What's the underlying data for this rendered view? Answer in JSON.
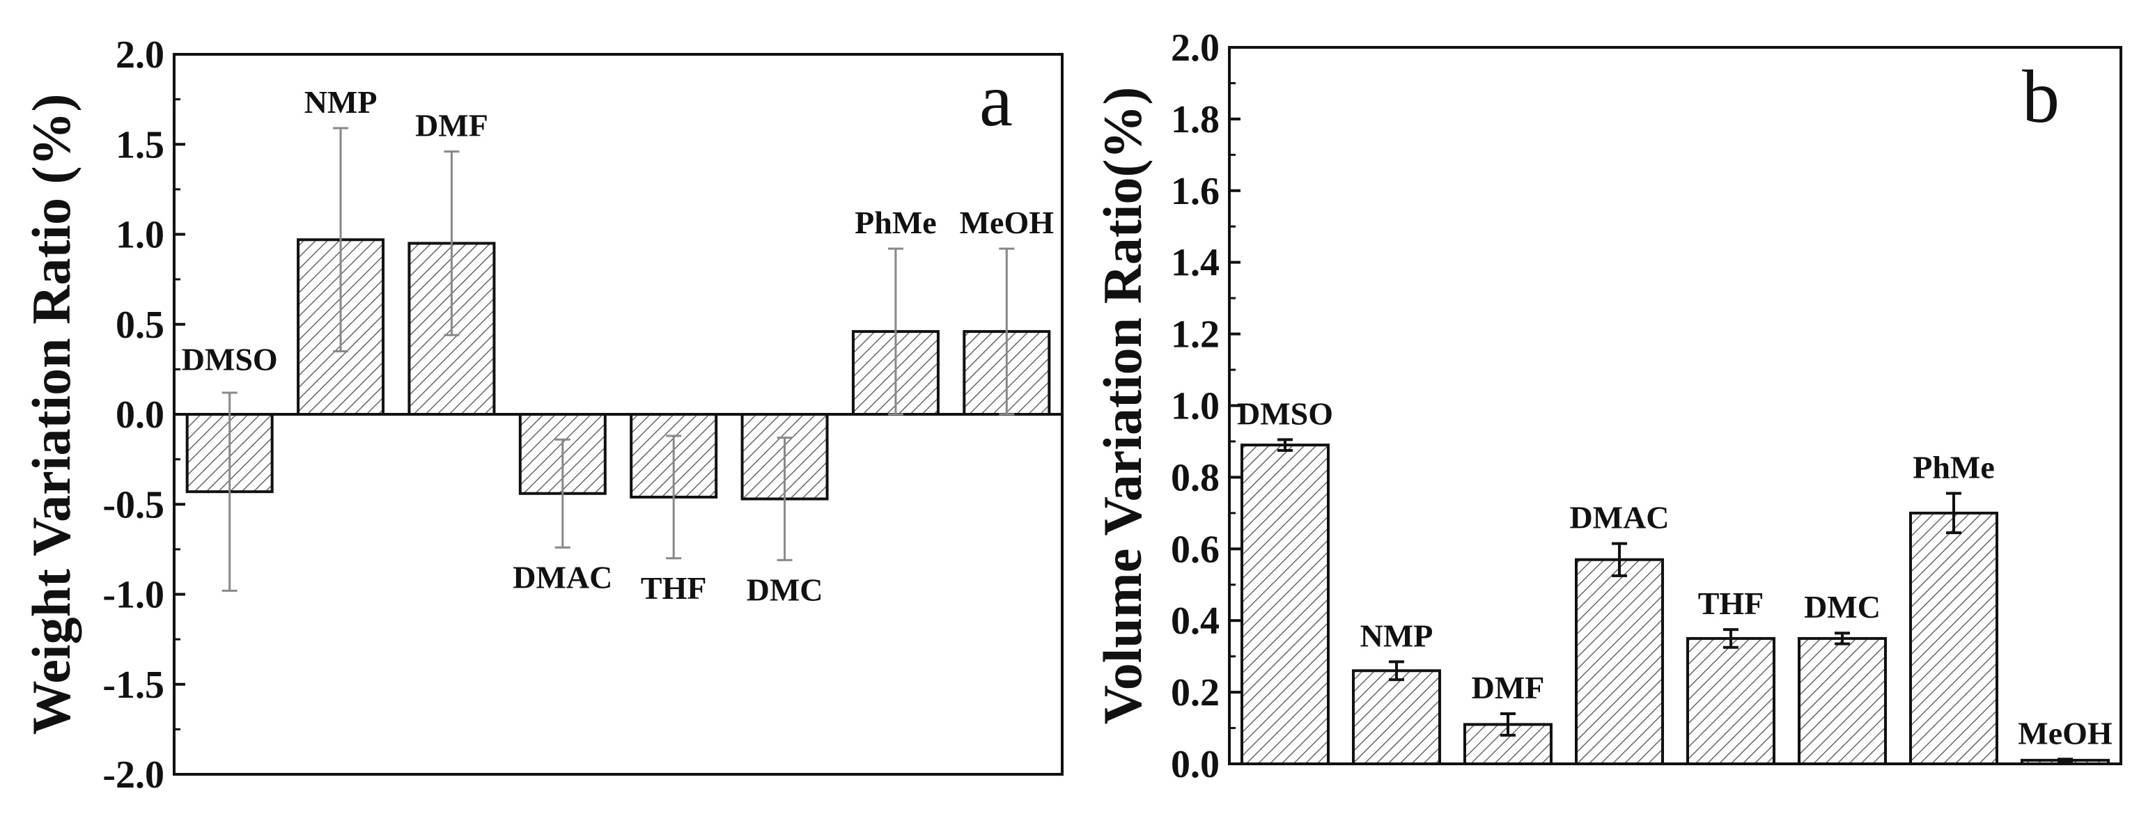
{
  "chart_data": [
    {
      "type": "bar",
      "panel_label": "a",
      "categories": [
        "DMSO",
        "NMP",
        "DMF",
        "DMAC",
        "THF",
        "DMC",
        "PhMe",
        "MeOH"
      ],
      "values": [
        -0.43,
        0.97,
        0.95,
        -0.44,
        -0.46,
        -0.47,
        0.46,
        0.46
      ],
      "error": [
        0.55,
        0.62,
        0.51,
        0.3,
        0.34,
        0.34,
        0.46,
        0.46
      ],
      "ylabel": "Weight Variation Ratio (%)",
      "ylim": [
        -2.0,
        2.0
      ],
      "yticks": [
        "2.0",
        "1.5",
        "1.0",
        "0.5",
        "0.0",
        "-0.5",
        "-1.0",
        "-1.5",
        "-2.0"
      ],
      "pattern": "diagonal-hatch",
      "grid": false
    },
    {
      "type": "bar",
      "panel_label": "b",
      "categories": [
        "DMSO",
        "NMP",
        "DMF",
        "DMAC",
        "THF",
        "DMC",
        "PhMe",
        "MeOH"
      ],
      "values": [
        0.89,
        0.26,
        0.11,
        0.57,
        0.35,
        0.35,
        0.7,
        0.01
      ],
      "error": [
        0.015,
        0.025,
        0.03,
        0.045,
        0.025,
        0.015,
        0.055,
        0.003
      ],
      "ylabel": "Volume Variation Ratio(%)",
      "ylim": [
        0.0,
        2.0
      ],
      "yticks": [
        "2.0",
        "1.8",
        "1.6",
        "1.4",
        "1.2",
        "1.0",
        "0.8",
        "0.6",
        "0.4",
        "0.2",
        "0.0"
      ],
      "pattern": "diagonal-hatch",
      "grid": false
    }
  ]
}
